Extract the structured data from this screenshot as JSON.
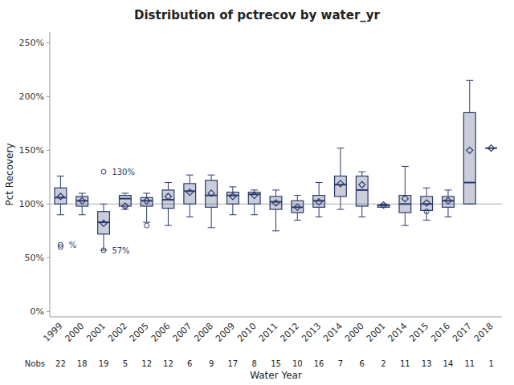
{
  "chart_data": {
    "type": "box",
    "title": "Distribution of pctrecov by water_yr",
    "xlabel": "Water Year",
    "ylabel": "Pct Recovery",
    "categories": [
      "1999",
      "2000",
      "2001",
      "2002",
      "2005",
      "2006",
      "2007",
      "2008",
      "2009",
      "2010",
      "2011",
      "2012",
      "2013",
      "2014",
      "2000",
      "2001",
      "2014",
      "2015",
      "2016",
      "2017",
      "2018"
    ],
    "boxes": [
      {
        "q1": 100,
        "med": 106,
        "q3": 115,
        "whislo": 90,
        "whishi": 126,
        "mean": 107,
        "fliers": [
          62,
          60
        ]
      },
      {
        "q1": 98,
        "med": 103,
        "q3": 107,
        "whislo": 90,
        "whishi": 110,
        "mean": 103,
        "fliers": []
      },
      {
        "q1": 72,
        "med": 83,
        "q3": 93,
        "whislo": 57,
        "whishi": 100,
        "mean": 82,
        "fliers": [
          130,
          57
        ]
      },
      {
        "q1": 98,
        "med": 105,
        "q3": 108,
        "whislo": 95,
        "whishi": 110,
        "mean": 98,
        "fliers": []
      },
      {
        "q1": 98,
        "med": 103,
        "q3": 106,
        "whislo": 83,
        "whishi": 110,
        "mean": 103,
        "fliers": [
          80
        ]
      },
      {
        "q1": 96,
        "med": 104,
        "q3": 113,
        "whislo": 80,
        "whishi": 120,
        "mean": 107,
        "fliers": []
      },
      {
        "q1": 100,
        "med": 112,
        "q3": 119,
        "whislo": 88,
        "whishi": 127,
        "mean": 111,
        "fliers": []
      },
      {
        "q1": 97,
        "med": 108,
        "q3": 122,
        "whislo": 78,
        "whishi": 127,
        "mean": 110,
        "fliers": []
      },
      {
        "q1": 100,
        "med": 108,
        "q3": 111,
        "whislo": 90,
        "whishi": 116,
        "mean": 107,
        "fliers": []
      },
      {
        "q1": 100,
        "med": 109,
        "q3": 111,
        "whislo": 90,
        "whishi": 113,
        "mean": 108,
        "fliers": []
      },
      {
        "q1": 95,
        "med": 102,
        "q3": 107,
        "whislo": 75,
        "whishi": 113,
        "mean": 101,
        "fliers": []
      },
      {
        "q1": 92,
        "med": 97,
        "q3": 103,
        "whislo": 85,
        "whishi": 108,
        "mean": 97,
        "fliers": []
      },
      {
        "q1": 97,
        "med": 103,
        "q3": 108,
        "whislo": 88,
        "whishi": 120,
        "mean": 102,
        "fliers": []
      },
      {
        "q1": 107,
        "med": 118,
        "q3": 126,
        "whislo": 95,
        "whishi": 152,
        "mean": 119,
        "fliers": []
      },
      {
        "q1": 98,
        "med": 113,
        "q3": 126,
        "whislo": 88,
        "whishi": 130,
        "mean": 118,
        "fliers": []
      },
      {
        "q1": 97,
        "med": 99,
        "q3": 99,
        "whislo": 97,
        "whishi": 100,
        "mean": 99,
        "fliers": []
      },
      {
        "q1": 92,
        "med": 100,
        "q3": 108,
        "whislo": 80,
        "whishi": 135,
        "mean": 105,
        "fliers": []
      },
      {
        "q1": 94,
        "med": 100,
        "q3": 107,
        "whislo": 85,
        "whishi": 115,
        "mean": 101,
        "fliers": [
          93
        ]
      },
      {
        "q1": 97,
        "med": 103,
        "q3": 107,
        "whislo": 88,
        "whishi": 113,
        "mean": 103,
        "fliers": []
      },
      {
        "q1": 100,
        "med": 120,
        "q3": 185,
        "whislo": 100,
        "whishi": 215,
        "mean": 150,
        "fliers": []
      },
      {
        "q1": 152,
        "med": 152,
        "q3": 152,
        "whislo": 152,
        "whishi": 152,
        "mean": 152,
        "fliers": []
      }
    ],
    "nobs_label": "Nobs",
    "nobs": [
      22,
      18,
      19,
      5,
      12,
      12,
      6,
      9,
      17,
      8,
      15,
      10,
      16,
      7,
      6,
      2,
      11,
      13,
      14,
      11,
      1
    ],
    "annotations": [
      {
        "x": 0,
        "y": 62,
        "text": "%"
      },
      {
        "x": 2,
        "y": 130,
        "text": "130%"
      },
      {
        "x": 2,
        "y": 57,
        "text": "57%"
      }
    ],
    "reference_line": 100,
    "ylim": [
      -5,
      260
    ],
    "yticks": [
      {
        "value": 0,
        "label": "0%"
      },
      {
        "value": 50,
        "label": "50%"
      },
      {
        "value": 100,
        "label": "100%"
      },
      {
        "value": 150,
        "label": "150%"
      },
      {
        "value": 200,
        "label": "200%"
      },
      {
        "value": 250,
        "label": "250%"
      }
    ],
    "grid": false,
    "color": "#2a3a6a"
  }
}
